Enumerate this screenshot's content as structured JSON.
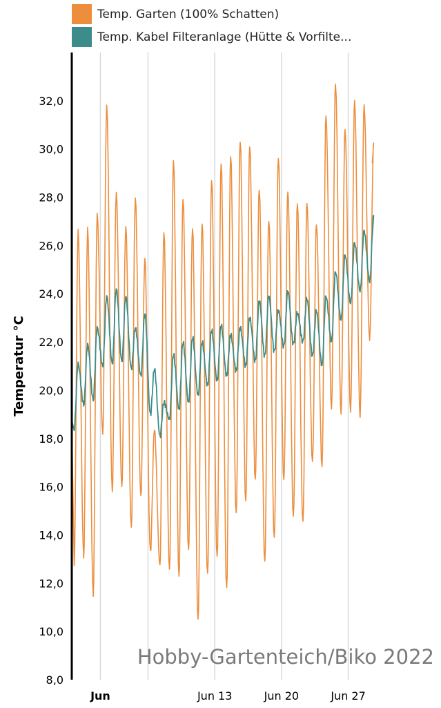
{
  "legend": {
    "items": [
      {
        "label": "Temp. Garten (100% Schatten)",
        "color": "#EC8E3C"
      },
      {
        "label": "Temp. Kabel Filteranlage (Hütte & Vorfilte...",
        "color": "#3C8C8C"
      }
    ]
  },
  "watermark": "Hobby-Gartenteich/Biko 2022",
  "chart_data": {
    "type": "line",
    "ylabel": "Temperatur °C",
    "xlabel": "",
    "ylim": [
      8,
      34
    ],
    "yticks": [
      8,
      10,
      12,
      14,
      16,
      18,
      20,
      22,
      24,
      26,
      28,
      30,
      32
    ],
    "ytick_labels": [
      "8,0",
      "10,0",
      "12,0",
      "14,0",
      "16,0",
      "18,0",
      "20,0",
      "22,0",
      "24,0",
      "26,0",
      "28,0",
      "30,0",
      "32,0"
    ],
    "xlim": [
      "2022-05-29T00:00",
      "2022-06-30T00:00"
    ],
    "xticks": [
      {
        "date": "2022-06-01",
        "label": "Jun",
        "bold": true
      },
      {
        "date": "2022-06-06",
        "label": "",
        "bold": false
      },
      {
        "date": "2022-06-13",
        "label": "Jun 13",
        "bold": false
      },
      {
        "date": "2022-06-20",
        "label": "Jun 20",
        "bold": false
      },
      {
        "date": "2022-06-27",
        "label": "Jun 27",
        "bold": false
      }
    ],
    "grid": "vertical",
    "legend_position": "top-left",
    "series": [
      {
        "name": "Temp. Garten (100% Schatten)",
        "color": "#EC8E3C",
        "daily": [
          {
            "date": "2022-05-29",
            "min": 12.8,
            "max": 26.6
          },
          {
            "date": "2022-05-30",
            "min": 13.1,
            "max": 26.7
          },
          {
            "date": "2022-05-31",
            "min": 11.5,
            "max": 27.3
          },
          {
            "date": "2022-06-01",
            "min": 18.2,
            "max": 31.8
          },
          {
            "date": "2022-06-02",
            "min": 15.8,
            "max": 28.2
          },
          {
            "date": "2022-06-03",
            "min": 16.0,
            "max": 26.8
          },
          {
            "date": "2022-06-04",
            "min": 14.3,
            "max": 28.0
          },
          {
            "date": "2022-06-05",
            "min": 15.6,
            "max": 25.5
          },
          {
            "date": "2022-06-06",
            "min": 13.3,
            "max": 18.4
          },
          {
            "date": "2022-06-07",
            "min": 12.7,
            "max": 26.6
          },
          {
            "date": "2022-06-08",
            "min": 12.5,
            "max": 29.6
          },
          {
            "date": "2022-06-09",
            "min": 12.2,
            "max": 28.0
          },
          {
            "date": "2022-06-10",
            "min": 13.3,
            "max": 26.8
          },
          {
            "date": "2022-06-11",
            "min": 10.4,
            "max": 27.0
          },
          {
            "date": "2022-06-12",
            "min": 12.3,
            "max": 28.8
          },
          {
            "date": "2022-06-13",
            "min": 13.0,
            "max": 29.5
          },
          {
            "date": "2022-06-14",
            "min": 11.7,
            "max": 29.8
          },
          {
            "date": "2022-06-15",
            "min": 14.8,
            "max": 30.4
          },
          {
            "date": "2022-06-16",
            "min": 15.3,
            "max": 30.2
          },
          {
            "date": "2022-06-17",
            "min": 16.2,
            "max": 28.4
          },
          {
            "date": "2022-06-18",
            "min": 12.8,
            "max": 27.1
          },
          {
            "date": "2022-06-19",
            "min": 13.8,
            "max": 29.7
          },
          {
            "date": "2022-06-20",
            "min": 16.2,
            "max": 28.3
          },
          {
            "date": "2022-06-21",
            "min": 14.7,
            "max": 27.8
          },
          {
            "date": "2022-06-22",
            "min": 14.5,
            "max": 27.8
          },
          {
            "date": "2022-06-23",
            "min": 17.0,
            "max": 26.9
          },
          {
            "date": "2022-06-24",
            "min": 16.8,
            "max": 31.4
          },
          {
            "date": "2022-06-25",
            "min": 19.2,
            "max": 32.7
          },
          {
            "date": "2022-06-26",
            "min": 19.0,
            "max": 30.8
          },
          {
            "date": "2022-06-27",
            "min": 19.1,
            "max": 32.0
          },
          {
            "date": "2022-06-28",
            "min": 18.9,
            "max": 31.8
          },
          {
            "date": "2022-06-29",
            "min": 22.1,
            "max": 30.2
          }
        ]
      },
      {
        "name": "Temp. Kabel Filteranlage (Hütte & Vorfilte...",
        "color": "#3C8C8C",
        "daily": [
          {
            "date": "2022-05-29",
            "min": 18.4,
            "max": 21.1
          },
          {
            "date": "2022-05-30",
            "min": 19.4,
            "max": 21.9
          },
          {
            "date": "2022-05-31",
            "min": 19.6,
            "max": 22.6
          },
          {
            "date": "2022-06-01",
            "min": 21.0,
            "max": 23.9
          },
          {
            "date": "2022-06-02",
            "min": 21.1,
            "max": 24.2
          },
          {
            "date": "2022-06-03",
            "min": 21.2,
            "max": 23.9
          },
          {
            "date": "2022-06-04",
            "min": 20.9,
            "max": 22.6
          },
          {
            "date": "2022-06-05",
            "min": 20.6,
            "max": 23.2
          },
          {
            "date": "2022-06-06",
            "min": 19.0,
            "max": 20.9
          },
          {
            "date": "2022-06-07",
            "min": 18.1,
            "max": 19.5
          },
          {
            "date": "2022-06-08",
            "min": 18.8,
            "max": 21.5
          },
          {
            "date": "2022-06-09",
            "min": 19.2,
            "max": 22.0
          },
          {
            "date": "2022-06-10",
            "min": 19.5,
            "max": 22.2
          },
          {
            "date": "2022-06-11",
            "min": 19.8,
            "max": 22.0
          },
          {
            "date": "2022-06-12",
            "min": 20.2,
            "max": 22.5
          },
          {
            "date": "2022-06-13",
            "min": 20.4,
            "max": 22.7
          },
          {
            "date": "2022-06-14",
            "min": 20.6,
            "max": 22.3
          },
          {
            "date": "2022-06-15",
            "min": 20.8,
            "max": 22.6
          },
          {
            "date": "2022-06-16",
            "min": 21.0,
            "max": 23.0
          },
          {
            "date": "2022-06-17",
            "min": 21.2,
            "max": 23.7
          },
          {
            "date": "2022-06-18",
            "min": 21.4,
            "max": 23.9
          },
          {
            "date": "2022-06-19",
            "min": 21.6,
            "max": 23.3
          },
          {
            "date": "2022-06-20",
            "min": 21.8,
            "max": 24.1
          },
          {
            "date": "2022-06-21",
            "min": 21.9,
            "max": 23.2
          },
          {
            "date": "2022-06-22",
            "min": 22.0,
            "max": 23.8
          },
          {
            "date": "2022-06-23",
            "min": 21.4,
            "max": 23.3
          },
          {
            "date": "2022-06-24",
            "min": 21.0,
            "max": 23.9
          },
          {
            "date": "2022-06-25",
            "min": 22.0,
            "max": 24.9
          },
          {
            "date": "2022-06-26",
            "min": 22.9,
            "max": 25.6
          },
          {
            "date": "2022-06-27",
            "min": 23.6,
            "max": 26.1
          },
          {
            "date": "2022-06-28",
            "min": 24.1,
            "max": 26.6
          },
          {
            "date": "2022-06-29",
            "min": 24.5,
            "max": 27.2
          }
        ]
      }
    ]
  }
}
